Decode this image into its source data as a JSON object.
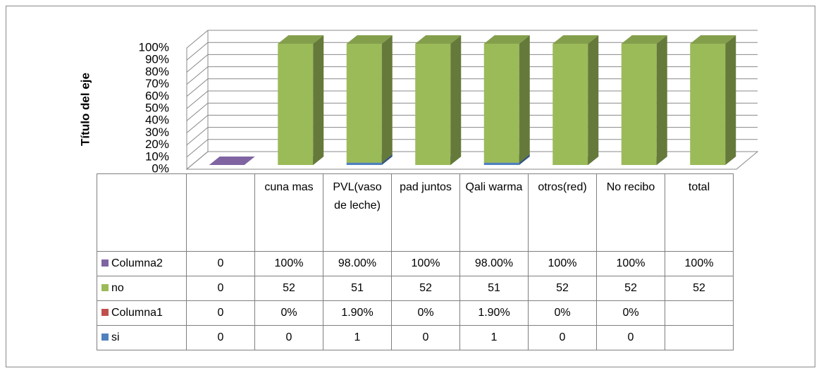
{
  "chart_data": {
    "type": "bar3d_stacked_percent",
    "y_axis_title": "Título del eje",
    "categories": [
      null,
      "cuna mas",
      "PVL(vaso de leche)",
      "pad juntos",
      "Qali warma",
      "otros(red)",
      "No recibo",
      "total"
    ],
    "series": [
      {
        "name": "Columna2",
        "color": "#8064a2",
        "values": [
          0,
          100,
          98,
          100,
          98,
          100,
          100,
          100
        ],
        "value_labels": [
          "0",
          "100%",
          "98.00%",
          "100%",
          "98.00%",
          "100%",
          "100%",
          "100%"
        ]
      },
      {
        "name": "no",
        "color": "#9bbb59",
        "values": [
          0,
          52,
          51,
          52,
          51,
          52,
          52,
          52
        ]
      },
      {
        "name": "Columna1",
        "color": "#c0504d",
        "values": [
          0,
          0,
          1.9,
          0,
          1.9,
          0,
          0,
          null
        ],
        "value_labels": [
          "0",
          "0%",
          "1.90%",
          "0%",
          "1.90%",
          "0%",
          "0%",
          null
        ]
      },
      {
        "name": "si",
        "color": "#4f81bd",
        "values": [
          0,
          0,
          1,
          0,
          1,
          0,
          0,
          null
        ]
      }
    ],
    "ylim": [
      0,
      100
    ],
    "yticks": [
      {
        "value": 0,
        "label": "0%"
      },
      {
        "value": 10,
        "label": "10%"
      },
      {
        "value": 20,
        "label": "20%"
      },
      {
        "value": 30,
        "label": "30%"
      },
      {
        "value": 40,
        "label": "40%"
      },
      {
        "value": 50,
        "label": "50%"
      },
      {
        "value": 60,
        "label": "60%"
      },
      {
        "value": 70,
        "label": "70%"
      },
      {
        "value": 80,
        "label": "80%"
      },
      {
        "value": 90,
        "label": "90%"
      },
      {
        "value": 100,
        "label": "100%"
      }
    ],
    "grid": true
  }
}
